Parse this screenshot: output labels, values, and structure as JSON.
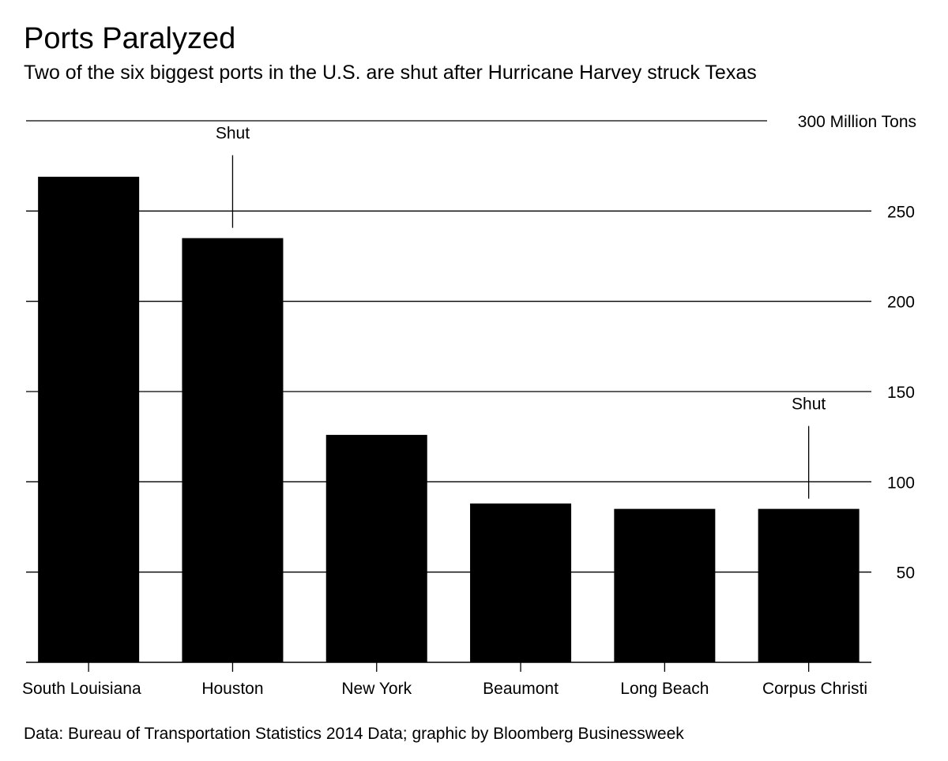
{
  "chart_data": {
    "type": "bar",
    "title": "Ports Paralyzed",
    "subtitle": "Two of the six biggest ports in the U.S. are shut after Hurricane Harvey struck Texas",
    "categories": [
      "South Louisiana",
      "Houston",
      "New York",
      "Beaumont",
      "Long Beach",
      "Corpus Christi"
    ],
    "values": [
      269,
      235,
      126,
      88,
      85,
      85
    ],
    "ylim": [
      0,
      300
    ],
    "yticks": [
      {
        "value": 300,
        "label": "300 Million Tons"
      },
      {
        "value": 250,
        "label": "250"
      },
      {
        "value": 200,
        "label": "200"
      },
      {
        "value": 150,
        "label": "150"
      },
      {
        "value": 100,
        "label": "100"
      },
      {
        "value": 50,
        "label": "50"
      }
    ],
    "annotations": [
      {
        "category": "Houston",
        "text": "Shut"
      },
      {
        "category": "Corpus Christi",
        "text": "Shut"
      }
    ],
    "grid": true,
    "axis_side": "right",
    "bar_color": "#000000",
    "source": "Data: Bureau of Transportation Statistics 2014 Data; graphic by Bloomberg Businessweek"
  }
}
